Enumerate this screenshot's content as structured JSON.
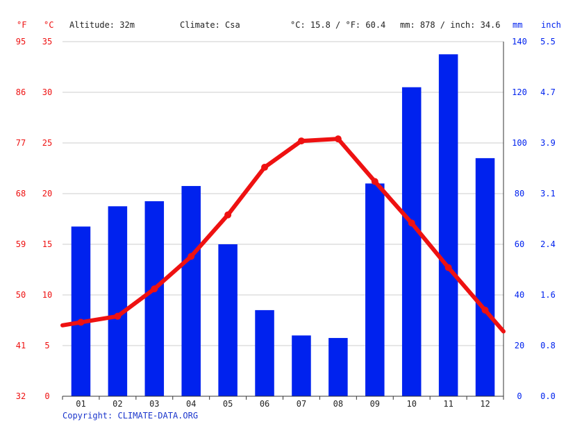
{
  "header": {
    "unit_f": "°F",
    "unit_c": "°C",
    "altitude": "Altitude: 32m",
    "climate": "Climate: Csa",
    "avg_temp": "°C: 15.8 / °F: 60.4",
    "precip": "mm: 878 / inch: 34.6",
    "unit_mm": "mm",
    "unit_inch": "inch"
  },
  "copyright": "Copyright: CLIMATE-DATA.ORG",
  "colors": {
    "temperature": "#ee1111",
    "precipitation": "#0022ee",
    "grid": "#cccccc"
  },
  "chart_data": {
    "type": "bar+line",
    "categories": [
      "01",
      "02",
      "03",
      "04",
      "05",
      "06",
      "07",
      "08",
      "09",
      "10",
      "11",
      "12"
    ],
    "series": [
      {
        "axis": "right",
        "type": "bar",
        "unit": "mm",
        "values": [
          67,
          75,
          77,
          83,
          60,
          34,
          24,
          23,
          84,
          122,
          135,
          94
        ]
      },
      {
        "axis": "left",
        "type": "line",
        "unit": "°C",
        "values": [
          7.3,
          7.9,
          10.6,
          13.8,
          17.9,
          22.6,
          25.2,
          25.4,
          21.2,
          17.1,
          12.7,
          8.5
        ]
      }
    ],
    "left_axis_c": {
      "ticks": [
        "35",
        "30",
        "25",
        "20",
        "15",
        "10",
        "5",
        "0"
      ],
      "ylim": [
        0,
        35
      ]
    },
    "left_axis_f": {
      "ticks": [
        "95",
        "86",
        "77",
        "68",
        "59",
        "50",
        "41",
        "32"
      ]
    },
    "right_axis_mm": {
      "ticks": [
        "140",
        "120",
        "100",
        "80",
        "60",
        "40",
        "20",
        "0"
      ],
      "ylim": [
        0,
        140
      ]
    },
    "right_axis_inch": {
      "ticks": [
        "5.5",
        "4.7",
        "3.9",
        "3.1",
        "2.4",
        "1.6",
        "0.8",
        "0.0"
      ]
    },
    "grid": true
  }
}
